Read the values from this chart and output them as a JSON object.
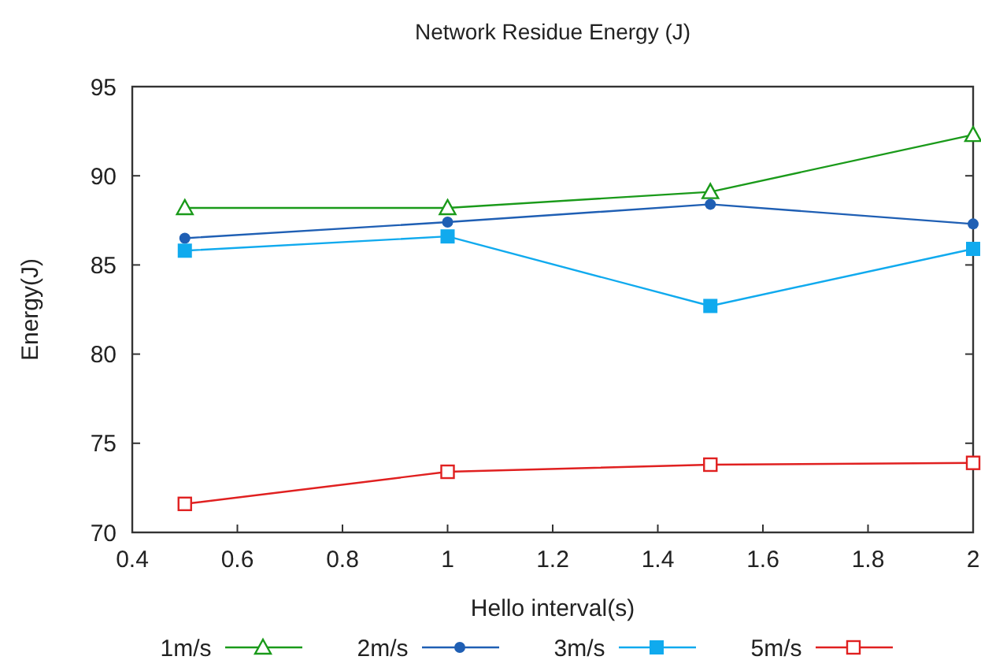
{
  "chart_data": {
    "type": "line",
    "title": "Network Residue Energy (J)",
    "xlabel": "Hello interval(s)",
    "ylabel": "Energy(J)",
    "x": [
      0.5,
      1,
      1.5,
      2
    ],
    "xlim": [
      0.4,
      2
    ],
    "xticks": [
      0.4,
      0.6,
      0.8,
      1,
      1.2,
      1.4,
      1.6,
      1.8,
      2
    ],
    "ylim": [
      70,
      95
    ],
    "yticks": [
      70,
      75,
      80,
      85,
      90,
      95
    ],
    "grid": false,
    "legend": "bottom",
    "line_style": "solid",
    "series": [
      {
        "name": "1m/s",
        "color": "#1a9a1a",
        "marker": "triangle",
        "values": [
          88.2,
          88.2,
          89.1,
          92.3
        ]
      },
      {
        "name": "2m/s",
        "color": "#1f5fb4",
        "marker": "circle",
        "values": [
          86.5,
          87.4,
          88.4,
          87.3
        ]
      },
      {
        "name": "3m/s",
        "color": "#10aaee",
        "marker": "square",
        "values": [
          85.8,
          86.6,
          82.7,
          85.9
        ]
      },
      {
        "name": "5m/s",
        "color": "#e02020",
        "marker": "square",
        "values": [
          71.6,
          73.4,
          73.8,
          73.9
        ]
      }
    ]
  }
}
